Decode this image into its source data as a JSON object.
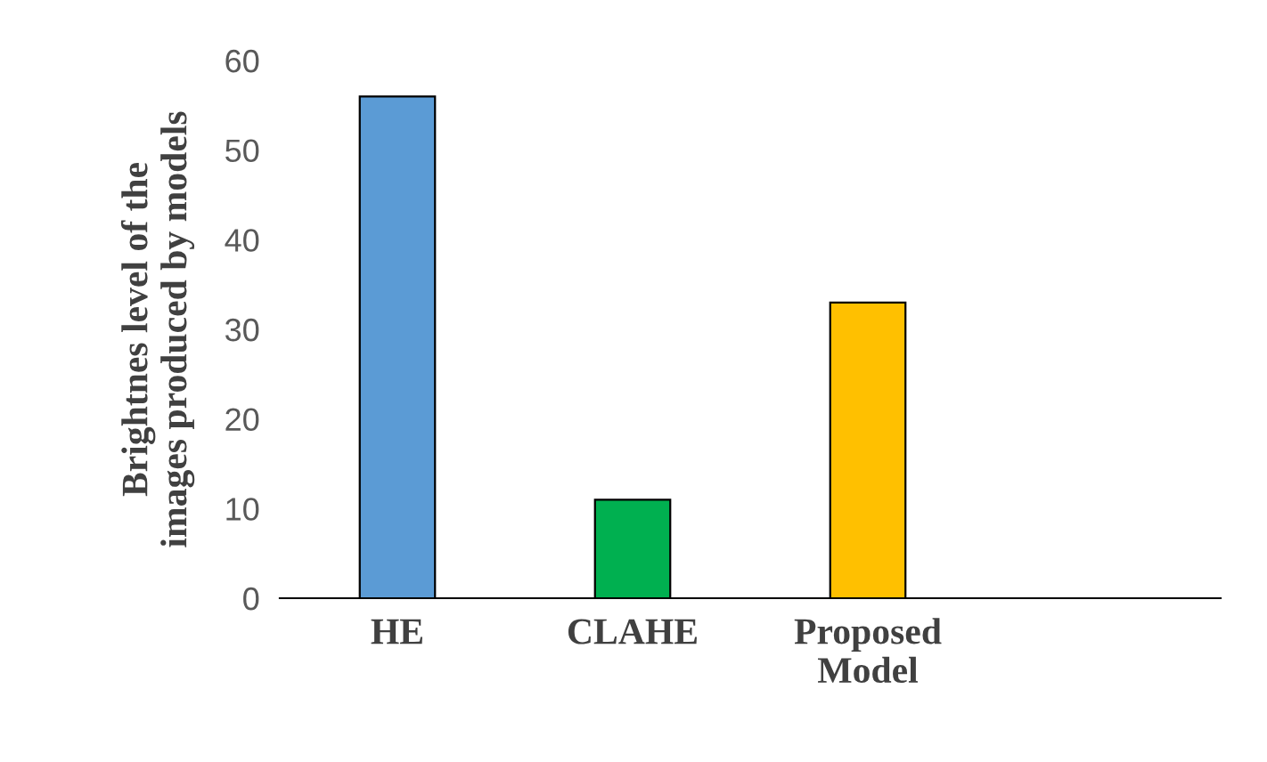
{
  "chart_data": {
    "type": "bar",
    "ylabel": "Brightnes level of the\nimages produced by models",
    "categories": [
      "HE",
      "CLAHE",
      "Proposed\nModel",
      null
    ],
    "values": [
      56,
      11,
      33,
      null
    ],
    "colors": [
      "#5b9bd5",
      "#00b050",
      "#ffc000",
      "#000000"
    ],
    "ylim": [
      0,
      60
    ],
    "yticks": [
      0,
      10,
      20,
      30,
      40,
      50,
      60
    ],
    "grid": false,
    "legend": false
  }
}
